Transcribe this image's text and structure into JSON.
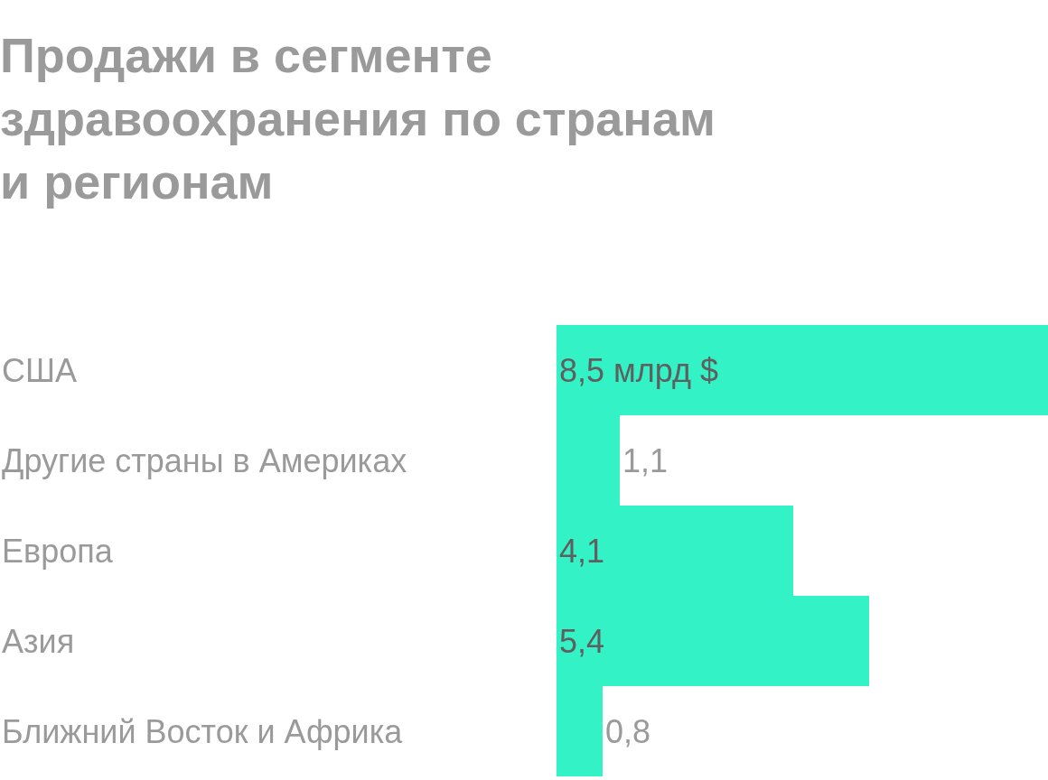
{
  "chart_data": {
    "type": "bar",
    "orientation": "horizontal",
    "title": "Продажи в сегменте\nздравоохранения по странам\nи регионам",
    "categories": [
      "США",
      "Другие страны в Америках",
      "Европа",
      "Азия",
      "Ближний Восток и Африка"
    ],
    "values": [
      8.5,
      1.1,
      4.1,
      5.4,
      0.8
    ],
    "value_labels": [
      "8,5 млрд $",
      "1,1",
      "4,1",
      "5,4",
      "0,8"
    ],
    "color": "#33f2c5",
    "xlim": [
      0,
      8.5
    ],
    "tick_labels": false
  }
}
